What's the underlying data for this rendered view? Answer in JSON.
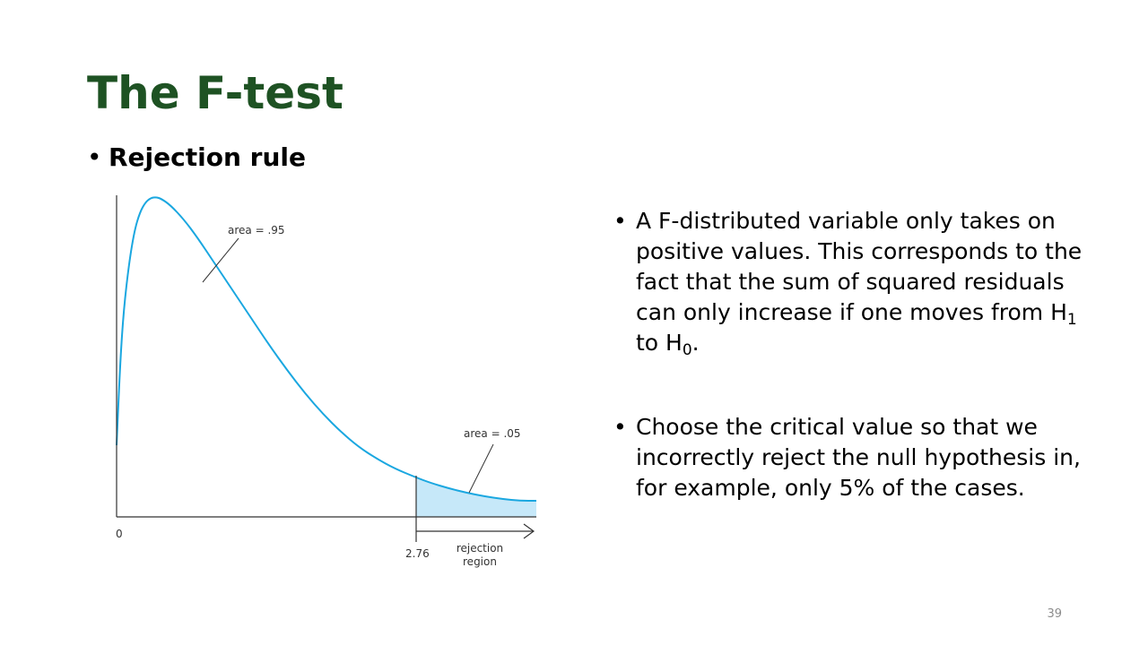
{
  "slide": {
    "title": "The F-test",
    "subtitle": "Rejection rule",
    "page_number": "39"
  },
  "figure": {
    "area_left_label": "area = .95",
    "area_right_label": "area = .05",
    "origin_label": "0",
    "critical_value_label": "2.76",
    "rejection_line1": "rejection",
    "rejection_line2": "region",
    "colors": {
      "curve": "#1aa7e0",
      "fill": "#c6e8f9",
      "axis": "#333333"
    }
  },
  "bullets": [
    {
      "parts": {
        "a": "A F-distributed variable only takes on positive values. This corresponds to the fact that the sum of squared residuals can only increase if one moves from H",
        "sub1": "1",
        "b": " to H",
        "sub2": "0",
        "c": "."
      }
    },
    {
      "text": "Choose the critical value so that we incorrectly reject the null hypothesis in, for example, only 5% of the cases."
    }
  ],
  "bullet_symbol": "•"
}
